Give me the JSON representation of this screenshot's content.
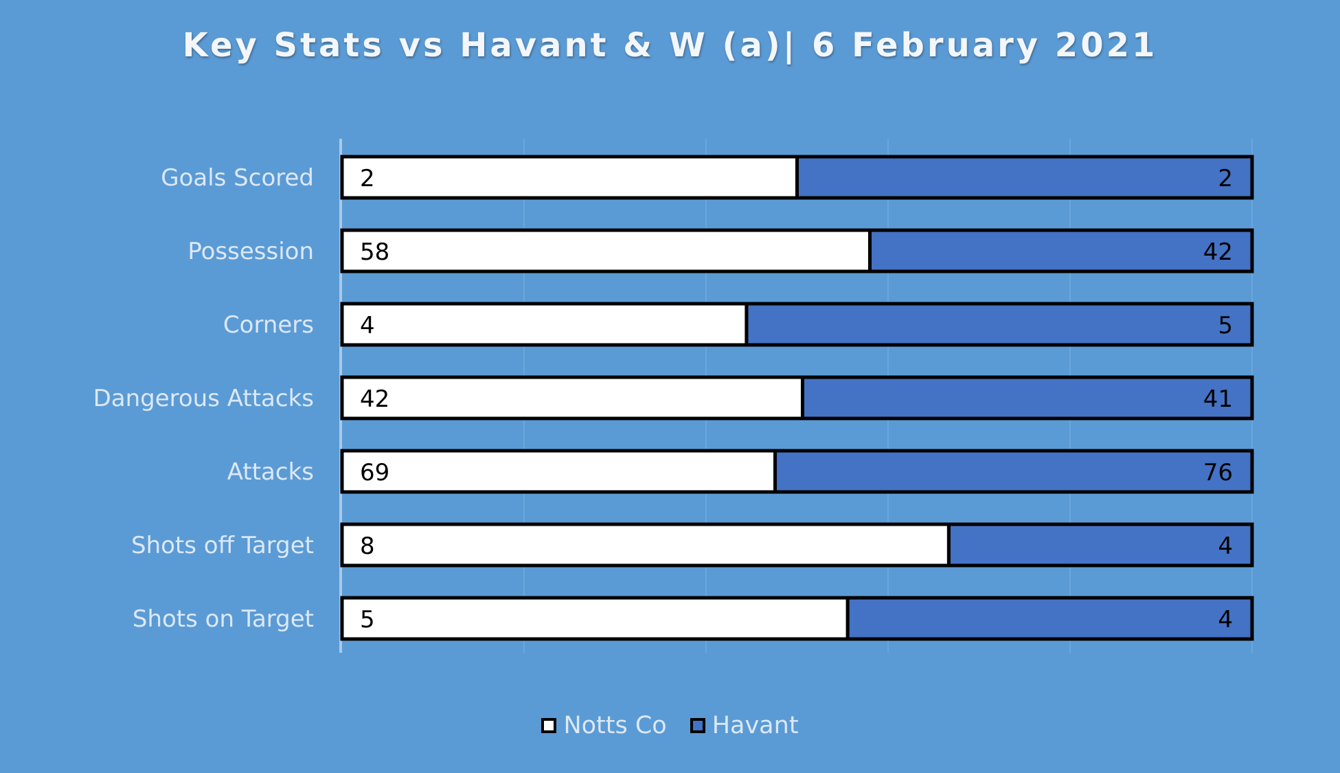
{
  "chart_data": {
    "type": "bar",
    "stacked": "percent",
    "orientation": "horizontal",
    "title": "Key Stats vs Havant & W (a)| 6 February 2021",
    "xlabel": "",
    "ylabel": "",
    "grid": true,
    "legend_position": "bottom",
    "categories": [
      "Goals Scored",
      "Possession",
      "Corners",
      "Dangerous Attacks",
      "Attacks",
      "Shots off Target",
      "Shots on Target"
    ],
    "series": [
      {
        "name": "Notts Co",
        "color": "#ffffff",
        "values": [
          2,
          58,
          4,
          42,
          69,
          8,
          5
        ]
      },
      {
        "name": "Havant",
        "color": "#4472c4",
        "values": [
          2,
          42,
          5,
          41,
          76,
          4,
          4
        ]
      }
    ]
  },
  "colors": {
    "background": "#5b9bd5",
    "gridline": "#6aa6dc",
    "axis": "#a9c9ea",
    "bar_outline": "#000000",
    "category_label": "#dce8f5"
  }
}
